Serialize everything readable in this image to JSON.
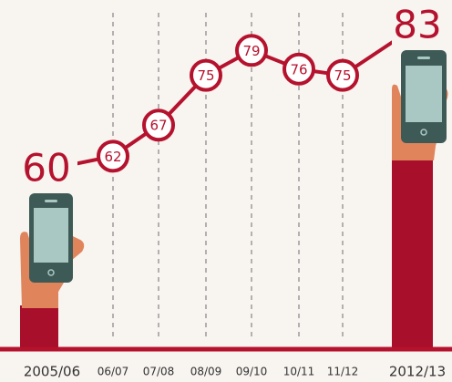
{
  "chart_data": {
    "type": "line",
    "categories": [
      "2005/06",
      "06/07",
      "07/08",
      "08/09",
      "09/10",
      "10/11",
      "11/12",
      "2012/13"
    ],
    "values": [
      60,
      62,
      67,
      75,
      79,
      76,
      75,
      83
    ],
    "color": "#b5122e"
  }
}
